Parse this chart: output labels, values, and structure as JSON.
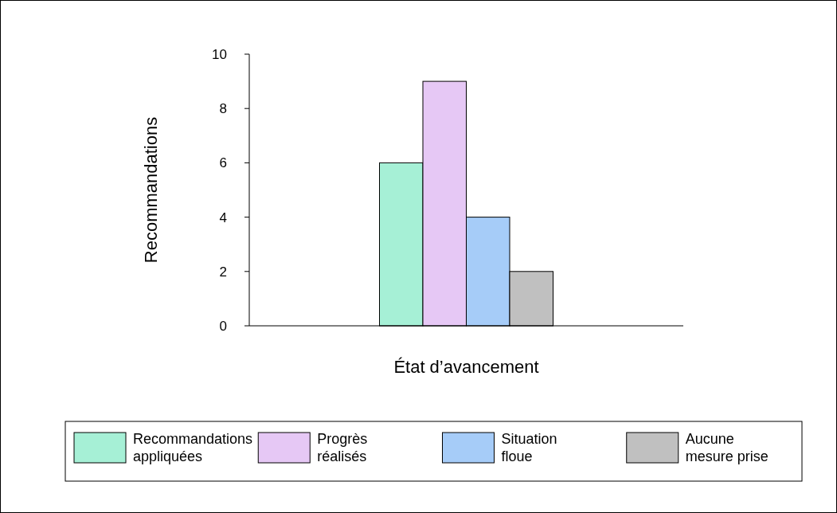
{
  "chart_data": {
    "type": "bar",
    "xlabel": "État d’avancement",
    "ylabel": "Recommandations",
    "categories": [
      null
    ],
    "series": [
      {
        "name": "Recommandations appliquées",
        "color": "#a6f0d6",
        "values": [
          6
        ]
      },
      {
        "name": "Progrès réalisés",
        "color": "#e6c8f5",
        "values": [
          9
        ]
      },
      {
        "name": "Situation floue",
        "color": "#a6ccf8",
        "values": [
          4
        ]
      },
      {
        "name": "Aucune mesure prise",
        "color": "#c0c0c0",
        "values": [
          2
        ]
      }
    ],
    "ylim": [
      0,
      10
    ],
    "yticks": [
      0,
      2,
      4,
      6,
      8,
      10
    ],
    "grid": false,
    "legend": "bottom"
  }
}
